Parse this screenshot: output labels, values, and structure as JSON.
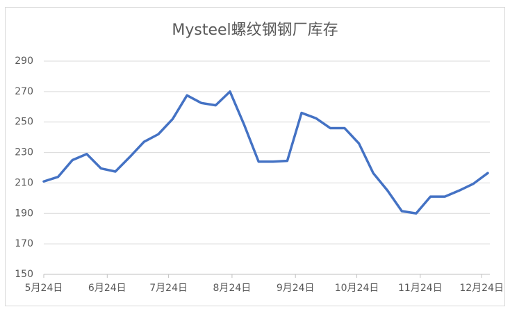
{
  "chart_data": {
    "type": "line",
    "title": "Mysteel螺纹钢钢厂库存",
    "x": [
      0,
      7,
      14,
      21,
      28,
      35,
      42,
      49,
      56,
      63,
      70,
      77,
      84,
      91,
      98,
      105,
      112,
      119,
      126,
      133,
      140,
      147,
      154,
      161,
      168,
      175,
      182,
      189,
      196,
      203,
      210,
      217
    ],
    "series": [
      {
        "name": "Mysteel螺纹钢钢厂库存",
        "color": "#4472c4",
        "values": [
          211,
          214,
          225,
          229,
          219.5,
          217.5,
          227,
          237,
          242,
          252,
          267.5,
          262.5,
          261,
          270,
          248,
          224,
          224,
          224.5,
          256,
          252.5,
          246,
          246,
          236,
          216.5,
          205,
          191.5,
          190,
          201,
          201,
          205,
          209.5,
          216.5
        ]
      }
    ],
    "xlim": [
      0,
      217
    ],
    "xticks": [
      {
        "value": 0,
        "label": "5月24日"
      },
      {
        "value": 31,
        "label": "6月24日"
      },
      {
        "value": 61,
        "label": "7月24日"
      },
      {
        "value": 92,
        "label": "8月24日"
      },
      {
        "value": 123,
        "label": "9月24日"
      },
      {
        "value": 153,
        "label": "10月24日"
      },
      {
        "value": 184,
        "label": "11月24日"
      },
      {
        "value": 214,
        "label": "12月24日"
      }
    ],
    "ylim": [
      150,
      290
    ],
    "yticks": [
      150,
      170,
      190,
      210,
      230,
      250,
      270,
      290
    ],
    "grid": true
  }
}
